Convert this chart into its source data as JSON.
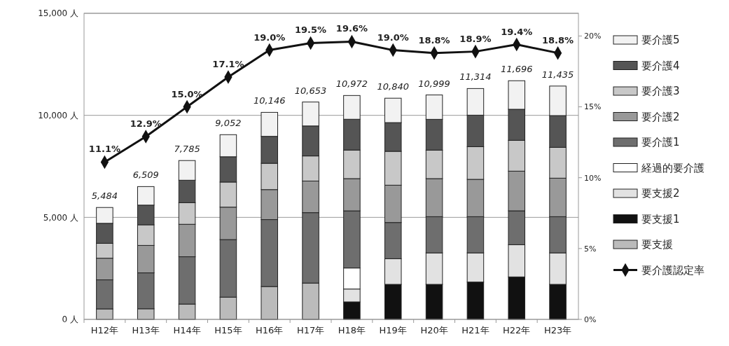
{
  "chart_data": {
    "type": "bar",
    "stacked": true,
    "categories": [
      "H12年",
      "H13年",
      "H14年",
      "H15年",
      "H16年",
      "H17年",
      "H18年",
      "H19年",
      "H20年",
      "H21年",
      "H22年",
      "H23年"
    ],
    "ylim": [
      0,
      15000
    ],
    "yticks": [
      {
        "value": 0,
        "label": "0 人"
      },
      {
        "value": 5000,
        "label": "5,000 人"
      },
      {
        "value": 10000,
        "label": "10,000 人"
      },
      {
        "value": 15000,
        "label": "15,000 人"
      }
    ],
    "y2lim": [
      0,
      21.6
    ],
    "y2ticks": [
      {
        "value": 0,
        "label": "0%"
      },
      {
        "value": 5,
        "label": "5%"
      },
      {
        "value": 10,
        "label": "10%"
      },
      {
        "value": 15,
        "label": "15%"
      },
      {
        "value": 20,
        "label": "20%"
      }
    ],
    "grid": "y",
    "legend": "right",
    "totals": [
      "5,484",
      "6,509",
      "7,785",
      "9,052",
      "10,146",
      "10,653",
      "10,972",
      "10,840",
      "10,999",
      "11,314",
      "11,696",
      "11,435"
    ],
    "series": [
      {
        "name": "要支援",
        "color": "#bbbbbb",
        "values": [
          513,
          520,
          750,
          1090,
          1610,
          1780,
          null,
          null,
          null,
          null,
          null,
          null
        ]
      },
      {
        "name": "要支援1",
        "color": "#111111",
        "values": [
          null,
          null,
          null,
          null,
          null,
          null,
          858,
          1716,
          1716,
          1830,
          2082,
          1716
        ]
      },
      {
        "name": "要支援2",
        "color": "#e2e2e2",
        "values": [
          null,
          null,
          null,
          null,
          null,
          null,
          630,
          1258,
          1544,
          1430,
          1579,
          1544
        ]
      },
      {
        "name": "経過的要介護",
        "color": "#ffffff",
        "values": [
          null,
          null,
          null,
          null,
          null,
          null,
          1030,
          null,
          null,
          null,
          null,
          null
        ]
      },
      {
        "name": "要介護1",
        "color": "#6e6e6e",
        "values": [
          1425,
          1760,
          2320,
          2820,
          3280,
          3450,
          2800,
          1773,
          1773,
          1773,
          1659,
          1773
        ]
      },
      {
        "name": "要介護2",
        "color": "#999999",
        "values": [
          1060,
          1345,
          1590,
          1590,
          1470,
          1550,
          1580,
          1830,
          1865,
          1830,
          1945,
          1888
        ]
      },
      {
        "name": "要介護3",
        "color": "#c8c8c8",
        "values": [
          730,
          1010,
          1060,
          1230,
          1290,
          1230,
          1400,
          1659,
          1396,
          1602,
          1510,
          1510
        ]
      },
      {
        "name": "要介護4",
        "color": "#555555",
        "values": [
          980,
          965,
          1100,
          1240,
          1320,
          1470,
          1510,
          1407,
          1510,
          1544,
          1522,
          1556
        ]
      },
      {
        "name": "要介護5",
        "color": "#f2f2f2",
        "values": [
          776,
          909,
          965,
          1082,
          1176,
          1173,
          1164,
          1197,
          1195,
          1305,
          1399,
          1448
        ]
      },
      {
        "name": "要介護認定率",
        "type": "line",
        "axis": "y2",
        "color": "#111111",
        "marker": "diamond",
        "values": [
          11.1,
          12.9,
          15.0,
          17.1,
          19.0,
          19.5,
          19.6,
          19.0,
          18.8,
          18.9,
          19.4,
          18.8
        ],
        "value_labels": [
          "11.1%",
          "12.9%",
          "15.0%",
          "17.1%",
          "19.0%",
          "19.5%",
          "19.6%",
          "19.0%",
          "18.8%",
          "18.9%",
          "19.4%",
          "18.8%"
        ]
      }
    ]
  }
}
